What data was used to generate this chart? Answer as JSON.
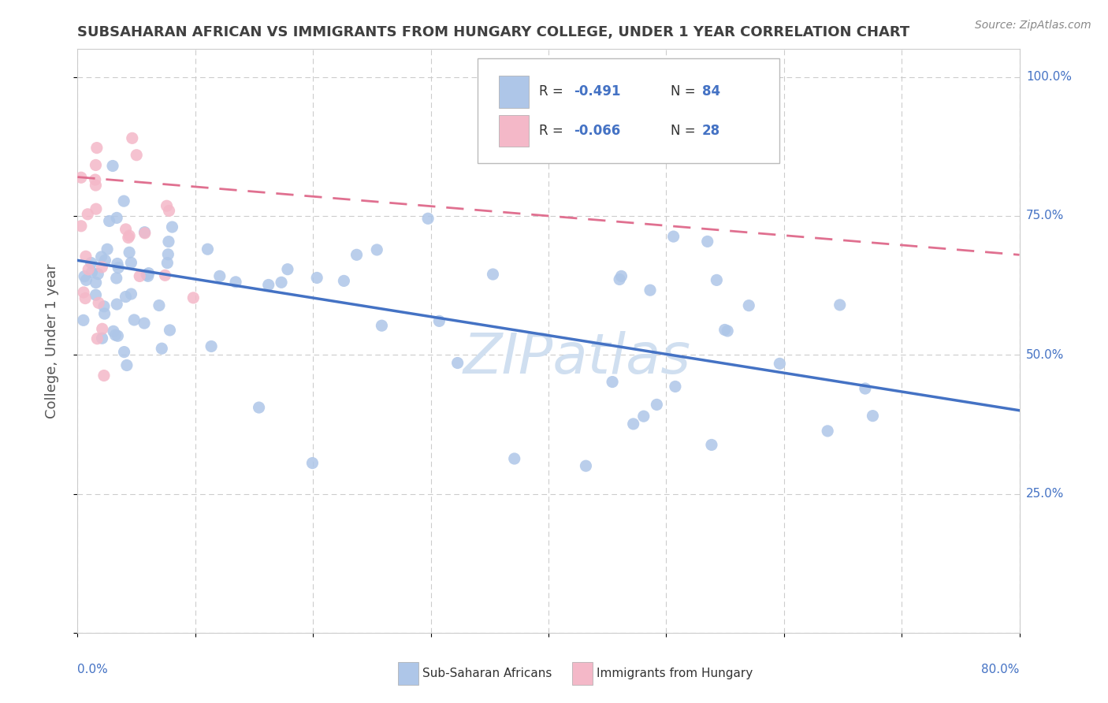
{
  "title": "SUBSAHARAN AFRICAN VS IMMIGRANTS FROM HUNGARY COLLEGE, UNDER 1 YEAR CORRELATION CHART",
  "source": "Source: ZipAtlas.com",
  "ylabel": "College, Under 1 year",
  "legend_r1": "R = -0.491",
  "legend_n1": "N = 84",
  "legend_r2": "R = -0.066",
  "legend_n2": "N = 28",
  "legend_label1": "Sub-Saharan Africans",
  "legend_label2": "Immigrants from Hungary",
  "blue_color": "#aec6e8",
  "blue_edge_color": "#aec6e8",
  "blue_line_color": "#4472c4",
  "pink_color": "#f4b8c8",
  "pink_edge_color": "#f4b8c8",
  "pink_line_color": "#e07090",
  "xlim": [
    0.0,
    0.8
  ],
  "ylim": [
    0.0,
    1.05
  ],
  "blue_line_x0": 0.0,
  "blue_line_x1": 0.8,
  "blue_line_y0": 0.67,
  "blue_line_y1": 0.4,
  "pink_line_x0": 0.0,
  "pink_line_x1": 0.8,
  "pink_line_y0": 0.82,
  "pink_line_y1": 0.68,
  "watermark_text": "ZIPatlas",
  "watermark_color": "#d0dff0",
  "background_color": "#ffffff",
  "grid_color": "#cccccc",
  "text_color": "#4472c4",
  "title_color": "#404040",
  "source_color": "#888888"
}
